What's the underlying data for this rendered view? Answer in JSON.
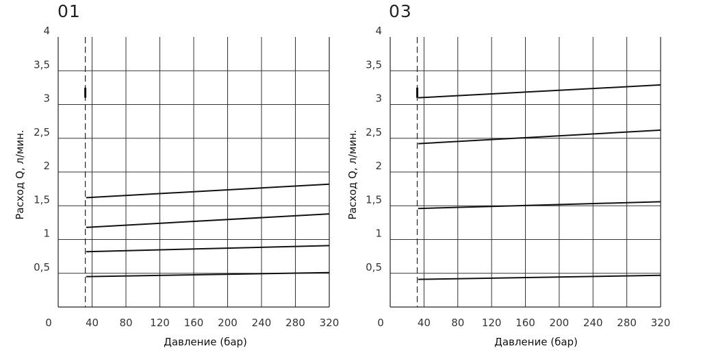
{
  "chart_data": [
    {
      "type": "line",
      "title": "01",
      "xlabel": "Давление (бар)",
      "ylabel": "Расход Q, л/мин.",
      "xlim": [
        0,
        320
      ],
      "ylim": [
        0,
        4
      ],
      "x_ticks": [
        "0",
        "40",
        "80",
        "120",
        "160",
        "200",
        "240",
        "280",
        "320"
      ],
      "y_ticks": [
        "0,5",
        "1",
        "1,5",
        "2",
        "2,5",
        "3",
        "3,5",
        "4"
      ],
      "grid": true,
      "dashed_reference_x": 32,
      "marker": {
        "x": 32,
        "y_from": 3.1,
        "y_to": 3.25
      },
      "series": [
        {
          "x": [
            33,
            320
          ],
          "y": [
            0.45,
            0.51
          ]
        },
        {
          "x": [
            33,
            320
          ],
          "y": [
            0.82,
            0.91
          ]
        },
        {
          "x": [
            33,
            320
          ],
          "y": [
            1.18,
            1.38
          ]
        },
        {
          "x": [
            33,
            320
          ],
          "y": [
            1.62,
            1.82
          ]
        }
      ]
    },
    {
      "type": "line",
      "title": "03",
      "xlabel": "Давление (бар)",
      "ylabel": "Расход Q, л/мин.",
      "xlim": [
        0,
        320
      ],
      "ylim": [
        0,
        4
      ],
      "x_ticks": [
        "0",
        "40",
        "80",
        "120",
        "160",
        "200",
        "240",
        "280",
        "320"
      ],
      "y_ticks": [
        "0,5",
        "1",
        "1,5",
        "2",
        "2,5",
        "3",
        "3,5",
        "4"
      ],
      "grid": true,
      "dashed_reference_x": 32,
      "marker": {
        "x": 32,
        "y_from": 3.1,
        "y_to": 3.25
      },
      "series": [
        {
          "x": [
            33,
            320
          ],
          "y": [
            0.41,
            0.47
          ]
        },
        {
          "x": [
            33,
            320
          ],
          "y": [
            1.46,
            1.56
          ]
        },
        {
          "x": [
            33,
            320
          ],
          "y": [
            2.42,
            2.62
          ]
        },
        {
          "x": [
            33,
            320
          ],
          "y": [
            3.1,
            3.29
          ]
        }
      ]
    }
  ]
}
